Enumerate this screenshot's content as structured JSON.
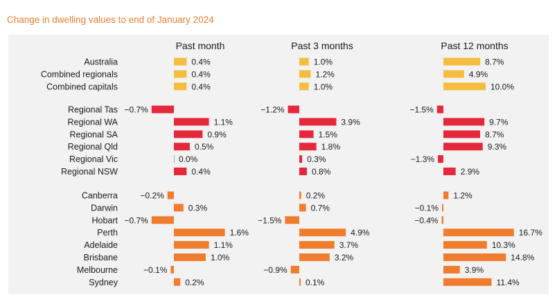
{
  "title": "Change in dwelling values to end of January 2024",
  "chart_data": {
    "type": "bar",
    "orientation": "horizontal",
    "value_unit": "%",
    "panels": [
      "Past month",
      "Past 3 months",
      "Past 12 months"
    ],
    "groups": [
      {
        "name": "summary",
        "color": "#f4bd3f",
        "rows": [
          {
            "label": "Australia",
            "values": [
              0.4,
              1.0,
              8.7
            ],
            "labels": [
              "0.4%",
              "1.0%",
              "8.7%"
            ]
          },
          {
            "label": "Combined regionals",
            "values": [
              0.4,
              1.2,
              4.9
            ],
            "labels": [
              "0.4%",
              "1.2%",
              "4.9%"
            ]
          },
          {
            "label": "Combined capitals",
            "values": [
              0.4,
              1.0,
              10.0
            ],
            "labels": [
              "0.4%",
              "1.0%",
              "10.0%"
            ]
          }
        ]
      },
      {
        "name": "regional",
        "color": "#e6283c",
        "rows": [
          {
            "label": "Regional Tas",
            "values": [
              -0.7,
              -1.2,
              -1.5
            ],
            "labels": [
              "−0.7%",
              "−1.2%",
              "−1.5%"
            ]
          },
          {
            "label": "Regional WA",
            "values": [
              1.1,
              3.9,
              9.7
            ],
            "labels": [
              "1.1%",
              "3.9%",
              "9.7%"
            ]
          },
          {
            "label": "Regional SA",
            "values": [
              0.9,
              1.5,
              8.7
            ],
            "labels": [
              "0.9%",
              "1.5%",
              "8.7%"
            ]
          },
          {
            "label": "Regional Qld",
            "values": [
              0.5,
              1.8,
              9.3
            ],
            "labels": [
              "0.5%",
              "1.8%",
              "9.3%"
            ]
          },
          {
            "label": "Regional Vic",
            "values": [
              0.0,
              0.3,
              -1.3
            ],
            "labels": [
              "0.0%",
              "0.3%",
              "−1.3%"
            ]
          },
          {
            "label": "Regional NSW",
            "values": [
              0.4,
              0.8,
              2.9
            ],
            "labels": [
              "0.4%",
              "0.8%",
              "2.9%"
            ]
          }
        ]
      },
      {
        "name": "capitals",
        "color": "#ef7d2d",
        "rows": [
          {
            "label": "Canberra",
            "values": [
              -0.2,
              0.2,
              1.2
            ],
            "labels": [
              "−0.2%",
              "0.2%",
              "1.2%"
            ]
          },
          {
            "label": "Darwin",
            "values": [
              0.3,
              0.7,
              -0.1
            ],
            "labels": [
              "0.3%",
              "0.7%",
              "−0.1%"
            ]
          },
          {
            "label": "Hobart",
            "values": [
              -0.7,
              -1.5,
              -0.4
            ],
            "labels": [
              "−0.7%",
              "−1.5%",
              "−0.4%"
            ]
          },
          {
            "label": "Perth",
            "values": [
              1.6,
              4.9,
              16.7
            ],
            "labels": [
              "1.6%",
              "4.9%",
              "16.7%"
            ]
          },
          {
            "label": "Adelaide",
            "values": [
              1.1,
              3.7,
              10.3
            ],
            "labels": [
              "1.1%",
              "3.7%",
              "10.3%"
            ]
          },
          {
            "label": "Brisbane",
            "values": [
              1.0,
              3.2,
              14.8
            ],
            "labels": [
              "1.0%",
              "3.2%",
              "14.8%"
            ]
          },
          {
            "label": "Melbourne",
            "values": [
              -0.1,
              -0.9,
              3.9
            ],
            "labels": [
              "−0.1%",
              "−0.9%",
              "3.9%"
            ]
          },
          {
            "label": "Sydney",
            "values": [
              0.2,
              0.1,
              11.4
            ],
            "labels": [
              "0.2%",
              "0.1%",
              "11.4%"
            ]
          }
        ]
      }
    ],
    "grid": false,
    "legend": "none"
  }
}
